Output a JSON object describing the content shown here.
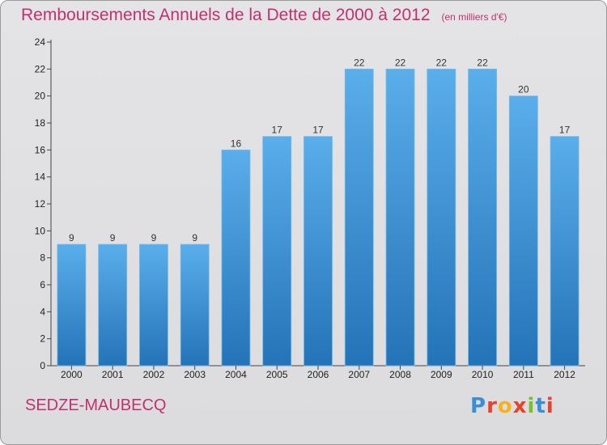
{
  "header": {
    "title": "Remboursements Annuels de la Dette de 2000 à 2012",
    "unit": "(en milliers d'€)"
  },
  "footer": {
    "commune": "SEDZE-MAUBECQ",
    "logo_text": "Proxiti",
    "logo_letters": [
      "P",
      "r",
      "o",
      "x",
      "i",
      "t",
      "i"
    ],
    "logo_colors": [
      "#3a8ed8",
      "#e8412c",
      "#f6b21b",
      "#e8412c",
      "#7bbf2f",
      "#3a8ed8",
      "#e8412c"
    ]
  },
  "chart_data": {
    "type": "bar",
    "categories": [
      "2000",
      "2001",
      "2002",
      "2003",
      "2004",
      "2005",
      "2006",
      "2007",
      "2008",
      "2009",
      "2010",
      "2011",
      "2012"
    ],
    "values": [
      9,
      9,
      9,
      9,
      16,
      17,
      17,
      22,
      22,
      22,
      22,
      20,
      17
    ],
    "data_labels": [
      "9",
      "9",
      "9",
      "9",
      "16",
      "17",
      "17",
      "22",
      "22",
      "22",
      "22",
      "20",
      "17"
    ],
    "title": "Remboursements Annuels de la Dette de 2000 à 2012",
    "ylim": [
      0,
      24
    ],
    "yticks": [
      "0",
      "2",
      "4",
      "6",
      "8",
      "10",
      "12",
      "14",
      "16",
      "18",
      "20",
      "22",
      "24"
    ],
    "grid": false,
    "bar_color": "#3d95d8",
    "bar_color_light": "#5aaeea",
    "bar_color_dark": "#2473b8"
  }
}
